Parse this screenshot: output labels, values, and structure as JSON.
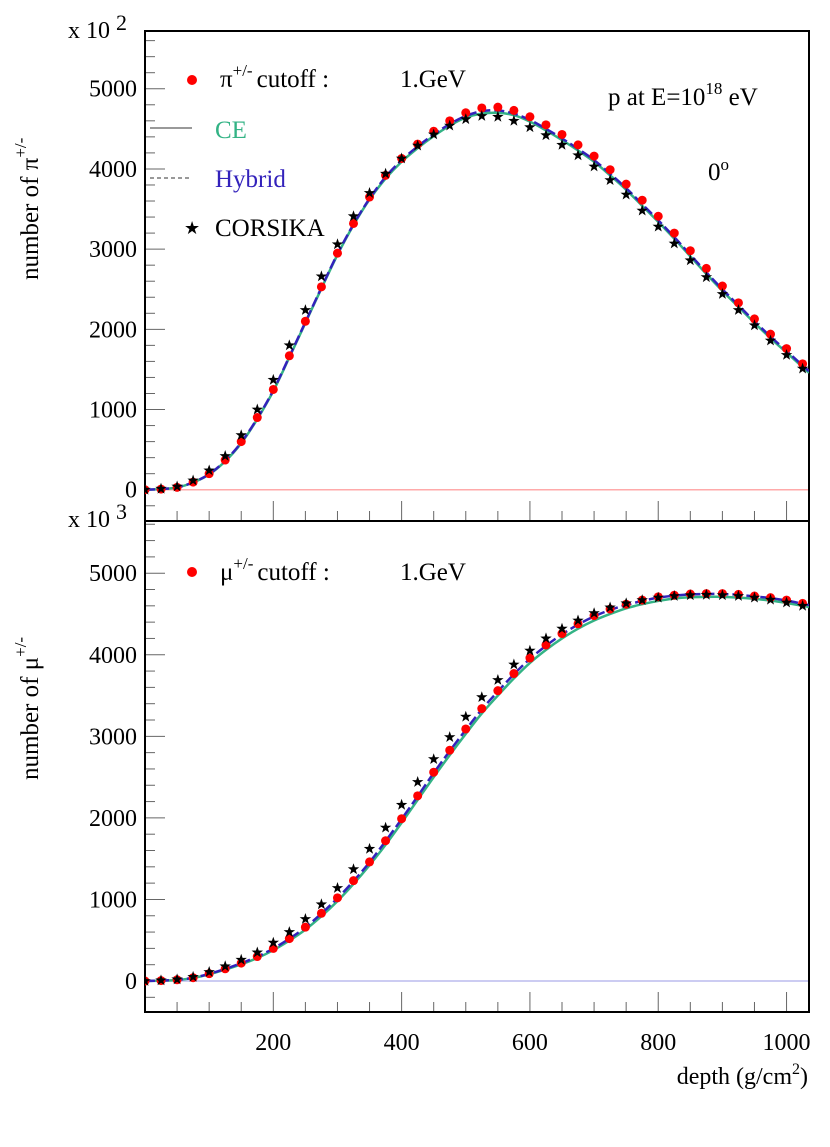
{
  "chart_data": [
    {
      "type": "line",
      "panel": "top",
      "ylabel": "number of π",
      "ylabel_sup": "+/-",
      "multiplier": "x 10",
      "multiplier_exp": "2",
      "xlim": [
        0,
        1035
      ],
      "ylim": [
        -390,
        5720
      ],
      "yticks": [
        "0",
        "1000",
        "2000",
        "3000",
        "4000",
        "5000"
      ],
      "zero_line_color": "#ffaaaa",
      "legend": {
        "placement": "top-left",
        "title_symbol": "π",
        "title_sup": "+/-",
        "title_text": "cutoff :",
        "cutoff": "1.GeV",
        "entries": [
          "CE",
          "Hybrid",
          "CORSIKA"
        ]
      },
      "annotations": {
        "energy_prefix": "p at E=10",
        "energy_exp": "18",
        "energy_suffix": " eV",
        "angle": "0",
        "angle_sup": "o"
      },
      "x": [
        0,
        25,
        50,
        75,
        100,
        125,
        150,
        175,
        200,
        225,
        250,
        275,
        300,
        325,
        350,
        375,
        400,
        425,
        450,
        475,
        500,
        525,
        550,
        575,
        600,
        625,
        650,
        675,
        700,
        725,
        750,
        775,
        800,
        825,
        850,
        875,
        900,
        925,
        950,
        975,
        1000,
        1025
      ],
      "series": [
        {
          "name": "π+/- cutoff : 1.GeV",
          "style": "dots",
          "color": "#ff0000",
          "values": [
            0,
            8,
            30,
            95,
            200,
            370,
            600,
            900,
            1250,
            1670,
            2100,
            2530,
            2950,
            3320,
            3650,
            3920,
            4130,
            4310,
            4470,
            4600,
            4700,
            4760,
            4770,
            4730,
            4650,
            4550,
            4430,
            4300,
            4160,
            3990,
            3810,
            3610,
            3410,
            3200,
            2980,
            2760,
            2540,
            2330,
            2130,
            1940,
            1760,
            1570
          ]
        },
        {
          "name": "CE",
          "style": "solid",
          "color": "#33b385",
          "values": [
            0,
            8,
            28,
            90,
            190,
            355,
            580,
            880,
            1230,
            1650,
            2080,
            2510,
            2930,
            3300,
            3620,
            3880,
            4090,
            4260,
            4410,
            4540,
            4640,
            4690,
            4700,
            4670,
            4590,
            4480,
            4360,
            4230,
            4090,
            3920,
            3740,
            3540,
            3340,
            3130,
            2910,
            2690,
            2480,
            2280,
            2080,
            1890,
            1710,
            1530
          ]
        },
        {
          "name": "Hybrid",
          "style": "dashed",
          "color": "#3322bb",
          "values": [
            0,
            8,
            29,
            92,
            195,
            362,
            590,
            890,
            1240,
            1660,
            2090,
            2520,
            2940,
            3310,
            3630,
            3900,
            4110,
            4280,
            4430,
            4560,
            4660,
            4720,
            4730,
            4690,
            4610,
            4500,
            4380,
            4250,
            4110,
            3940,
            3760,
            3560,
            3360,
            3150,
            2930,
            2710,
            2500,
            2300,
            2100,
            1910,
            1730,
            1550
          ]
        },
        {
          "name": "CORSIKA",
          "style": "stars",
          "color": "#000000",
          "values": [
            0,
            12,
            40,
            115,
            240,
            420,
            680,
            1000,
            1370,
            1800,
            2240,
            2660,
            3060,
            3410,
            3700,
            3940,
            4130,
            4290,
            4430,
            4540,
            4620,
            4660,
            4650,
            4600,
            4520,
            4420,
            4300,
            4170,
            4030,
            3860,
            3680,
            3480,
            3280,
            3070,
            2860,
            2650,
            2440,
            2240,
            2050,
            1860,
            1680,
            1510
          ]
        }
      ]
    },
    {
      "type": "line",
      "panel": "bottom",
      "ylabel": "number of μ",
      "ylabel_sup": "+/-",
      "multiplier": "x 10",
      "multiplier_exp": "3",
      "xlabel": "depth (g/cm",
      "xlabel_sup": "2",
      "xlabel_end": ")",
      "xlim": [
        0,
        1035
      ],
      "ylim": [
        -380,
        5640
      ],
      "xticks": [
        "200",
        "400",
        "600",
        "800",
        "1000"
      ],
      "yticks": [
        "0",
        "1000",
        "2000",
        "3000",
        "4000",
        "5000"
      ],
      "zero_line_color": "#bbbbee",
      "legend": {
        "placement": "top-left",
        "title_symbol": "μ",
        "title_sup": "+/-",
        "title_text": "cutoff :",
        "cutoff": "1.GeV"
      },
      "x": [
        0,
        25,
        50,
        75,
        100,
        125,
        150,
        175,
        200,
        225,
        250,
        275,
        300,
        325,
        350,
        375,
        400,
        425,
        450,
        475,
        500,
        525,
        550,
        575,
        600,
        625,
        650,
        675,
        700,
        725,
        750,
        775,
        800,
        825,
        850,
        875,
        900,
        925,
        950,
        975,
        1000,
        1025
      ],
      "series": [
        {
          "name": "μ+/- cutoff : 1.GeV",
          "style": "dots",
          "color": "#ff0000",
          "values": [
            0,
            5,
            15,
            40,
            90,
            150,
            220,
            300,
            400,
            520,
            660,
            830,
            1020,
            1230,
            1460,
            1720,
            1990,
            2270,
            2560,
            2830,
            3090,
            3340,
            3560,
            3770,
            3960,
            4120,
            4260,
            4380,
            4480,
            4560,
            4620,
            4670,
            4710,
            4730,
            4745,
            4750,
            4750,
            4740,
            4720,
            4700,
            4670,
            4630
          ]
        },
        {
          "name": "CE",
          "style": "solid",
          "color": "#33b385",
          "values": [
            0,
            4,
            13,
            36,
            82,
            140,
            205,
            282,
            378,
            495,
            630,
            795,
            980,
            1190,
            1420,
            1670,
            1940,
            2220,
            2500,
            2770,
            3030,
            3280,
            3500,
            3710,
            3900,
            4060,
            4200,
            4320,
            4420,
            4500,
            4570,
            4620,
            4660,
            4690,
            4705,
            4710,
            4710,
            4700,
            4685,
            4665,
            4635,
            4600
          ]
        },
        {
          "name": "Hybrid",
          "style": "dashed",
          "color": "#3322bb",
          "values": [
            0,
            5,
            15,
            40,
            88,
            148,
            218,
            298,
            398,
            518,
            657,
            827,
            1015,
            1225,
            1455,
            1715,
            1985,
            2265,
            2550,
            2820,
            3080,
            3330,
            3550,
            3760,
            3950,
            4110,
            4250,
            4370,
            4470,
            4550,
            4610,
            4660,
            4700,
            4725,
            4740,
            4745,
            4745,
            4735,
            4715,
            4695,
            4665,
            4625
          ]
        },
        {
          "name": "CORSIKA",
          "style": "stars",
          "color": "#000000",
          "values": [
            0,
            8,
            20,
            50,
            110,
            180,
            260,
            350,
            470,
            600,
            760,
            940,
            1140,
            1370,
            1620,
            1880,
            2160,
            2440,
            2720,
            2990,
            3240,
            3480,
            3690,
            3880,
            4050,
            4200,
            4320,
            4420,
            4510,
            4580,
            4630,
            4670,
            4700,
            4720,
            4730,
            4735,
            4730,
            4720,
            4700,
            4675,
            4640,
            4600
          ]
        }
      ]
    }
  ]
}
